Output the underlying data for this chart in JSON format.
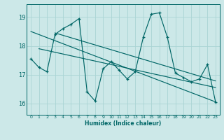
{
  "title": "",
  "xlabel": "Humidex (Indice chaleur)",
  "ylabel": "",
  "bg_color": "#cce8e8",
  "grid_color": "#aad4d4",
  "line_color": "#006666",
  "yticks": [
    16,
    17,
    18,
    19
  ],
  "xticks": [
    0,
    1,
    2,
    3,
    4,
    5,
    6,
    7,
    8,
    9,
    10,
    11,
    12,
    13,
    14,
    15,
    16,
    17,
    18,
    19,
    20,
    21,
    22,
    23
  ],
  "xlim": [
    -0.5,
    23.5
  ],
  "ylim": [
    15.6,
    19.45
  ],
  "main_x": [
    0,
    1,
    2,
    3,
    4,
    5,
    6,
    7,
    8,
    9,
    10,
    11,
    12,
    13,
    14,
    15,
    16,
    17,
    18,
    19,
    20,
    21,
    22,
    23
  ],
  "main_y": [
    17.55,
    17.25,
    17.1,
    18.4,
    18.6,
    18.75,
    18.95,
    16.4,
    16.08,
    17.2,
    17.45,
    17.15,
    16.85,
    17.1,
    18.3,
    19.1,
    19.15,
    18.3,
    17.05,
    16.9,
    16.75,
    16.85,
    17.35,
    16.05
  ],
  "trend1_x": [
    0,
    23
  ],
  "trend1_y": [
    18.5,
    16.05
  ],
  "trend2_x": [
    1,
    23
  ],
  "trend2_y": [
    17.9,
    16.55
  ],
  "trend3_x": [
    3,
    23
  ],
  "trend3_y": [
    18.45,
    16.78
  ]
}
